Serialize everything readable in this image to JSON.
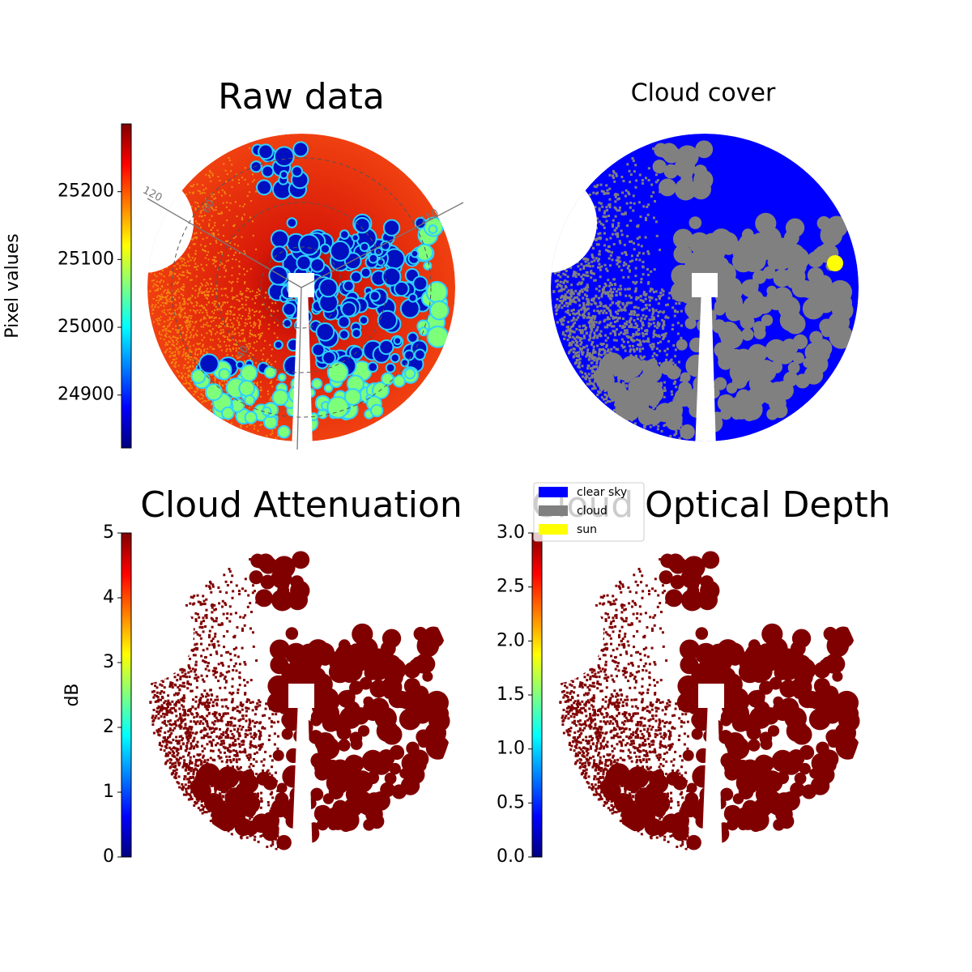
{
  "chart_data": [
    {
      "type": "image",
      "title": "Raw data",
      "colormap": "jet",
      "colorbar": {
        "label": "Pixel values",
        "lim": [
          24822,
          25300
        ],
        "ticks": [
          24900,
          25000,
          25100,
          25200
        ]
      },
      "annotations": [
        "120",
        "60",
        "40",
        "210"
      ]
    },
    {
      "type": "image",
      "title": "Cloud cover",
      "series": [
        {
          "name": "clear sky",
          "color": "#0000ff"
        },
        {
          "name": "cloud",
          "color": "#808080"
        },
        {
          "name": "sun",
          "color": "#ffff00"
        }
      ]
    },
    {
      "type": "image",
      "title": "Cloud Attenuation",
      "colormap": "jet",
      "colorbar": {
        "label": "dB",
        "lim": [
          0,
          5
        ],
        "ticks": [
          0,
          1,
          2,
          3,
          4,
          5
        ]
      }
    },
    {
      "type": "image",
      "title": "Cloud Optical Depth",
      "colormap": "jet",
      "colorbar": {
        "lim": [
          0,
          3
        ],
        "ticks": [
          {
            "value": 0,
            "label": "0.0"
          },
          {
            "value": 0.5,
            "label": "0.5"
          },
          {
            "value": 1,
            "label": "1.0"
          },
          {
            "value": 1.5,
            "label": "1.5"
          },
          {
            "value": 2,
            "label": "2.0"
          },
          {
            "value": 2.5,
            "label": "2.5"
          },
          {
            "value": 3,
            "label": "3.0"
          }
        ]
      }
    }
  ]
}
